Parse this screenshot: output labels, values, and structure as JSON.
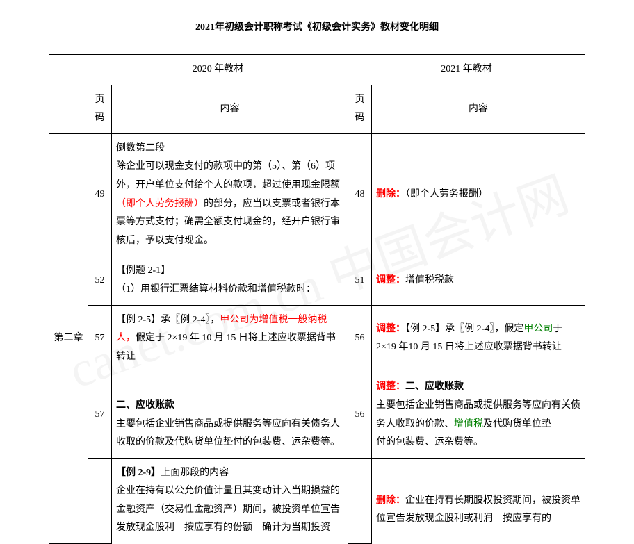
{
  "title": "2021年初级会计职称考试《初级会计实务》教材变化明细",
  "header": {
    "year2020": "2020 年教材",
    "year2021": "2021 年教材",
    "pageCol": "页码",
    "contentCol": "内容"
  },
  "chapter": "第二章",
  "rows": [
    {
      "p2020": "49",
      "c2020_plain1": "倒数第二段",
      "c2020_plain2": "除企业可以现金支付的款项中的第（5）、第（6）项外，开户单位支付给个人的款项，超过使用现金限额",
      "c2020_red": "（即个人劳务报酬）",
      "c2020_plain3": "的部分，应当以支票或者银行本票等方式支付；确需全额支付现金的，经开户银行审核后，予以支付现金。",
      "p2021": "48",
      "c2021_red_bold": "删除：",
      "c2021_plain": "（即个人劳务报酬）"
    },
    {
      "p2020": "52",
      "c2020_plain1": "【例题 2-1】",
      "c2020_plain2": "（1）用银行汇票结算材料价款和增值税款时：",
      "p2021": "51",
      "c2021_red_bold": "调整：",
      "c2021_plain": "增值税税款"
    },
    {
      "p2020": "57",
      "c2020_plain1": "【例 2-5】承〖例 2-4〗，",
      "c2020_red": "甲公司为增值税一般纳税人，",
      "c2020_plain2": "假定于 2×19 年 10 月 15 日将上述应收票据背书转让",
      "p2021": "56",
      "c2021_red_bold": "调整：",
      "c2021_plain1": "【例 2-5】承〖例 2-4〗，假定",
      "c2021_green": "甲公司",
      "c2021_plain2": "于 2×19 年10 月 15 日将上述应收票据背书转让"
    },
    {
      "p2020": "57",
      "c2020_bold": "二、应收账款",
      "c2020_plain": "主要包括企业销售商品或提供服务等应向有关债务人收取的价款及代购货单位垫付的包装费、运杂费等。",
      "p2021": "56",
      "c2021_red_bold": "调整：",
      "c2021_bold": "二、应收账款",
      "c2021_plain1": "主要包括企业销售商品或提供服务等应向有关债务人收取的价款、",
      "c2021_green": "增值税",
      "c2021_plain2": "及代购货单位垫",
      "c2021_plain3": "付的包装费、运杂费等。"
    },
    {
      "p2020": "",
      "c2020_bold": "【例 2-9】",
      "c2020_plain1": "上面那段的内容",
      "c2020_plain2": "企业在持有以公允价值计量且其变动计入当期损益的金融资产（交易性金融资产）期间，被投资单位宣告发放现金股利　按应享有的份额　确计为当期投资",
      "p2021": "",
      "c2021_red_bold": "删除：",
      "c2021_plain": "企业在持有长期股权投资期间，被投资单位宣告发放现金股利或利润　按应享有的"
    }
  ],
  "watermark": "canet.com.cn 中国会计网",
  "colors": {
    "red": "#ff0000",
    "green": "#008000",
    "text": "#000000",
    "background": "#ffffff",
    "border": "#000000"
  }
}
